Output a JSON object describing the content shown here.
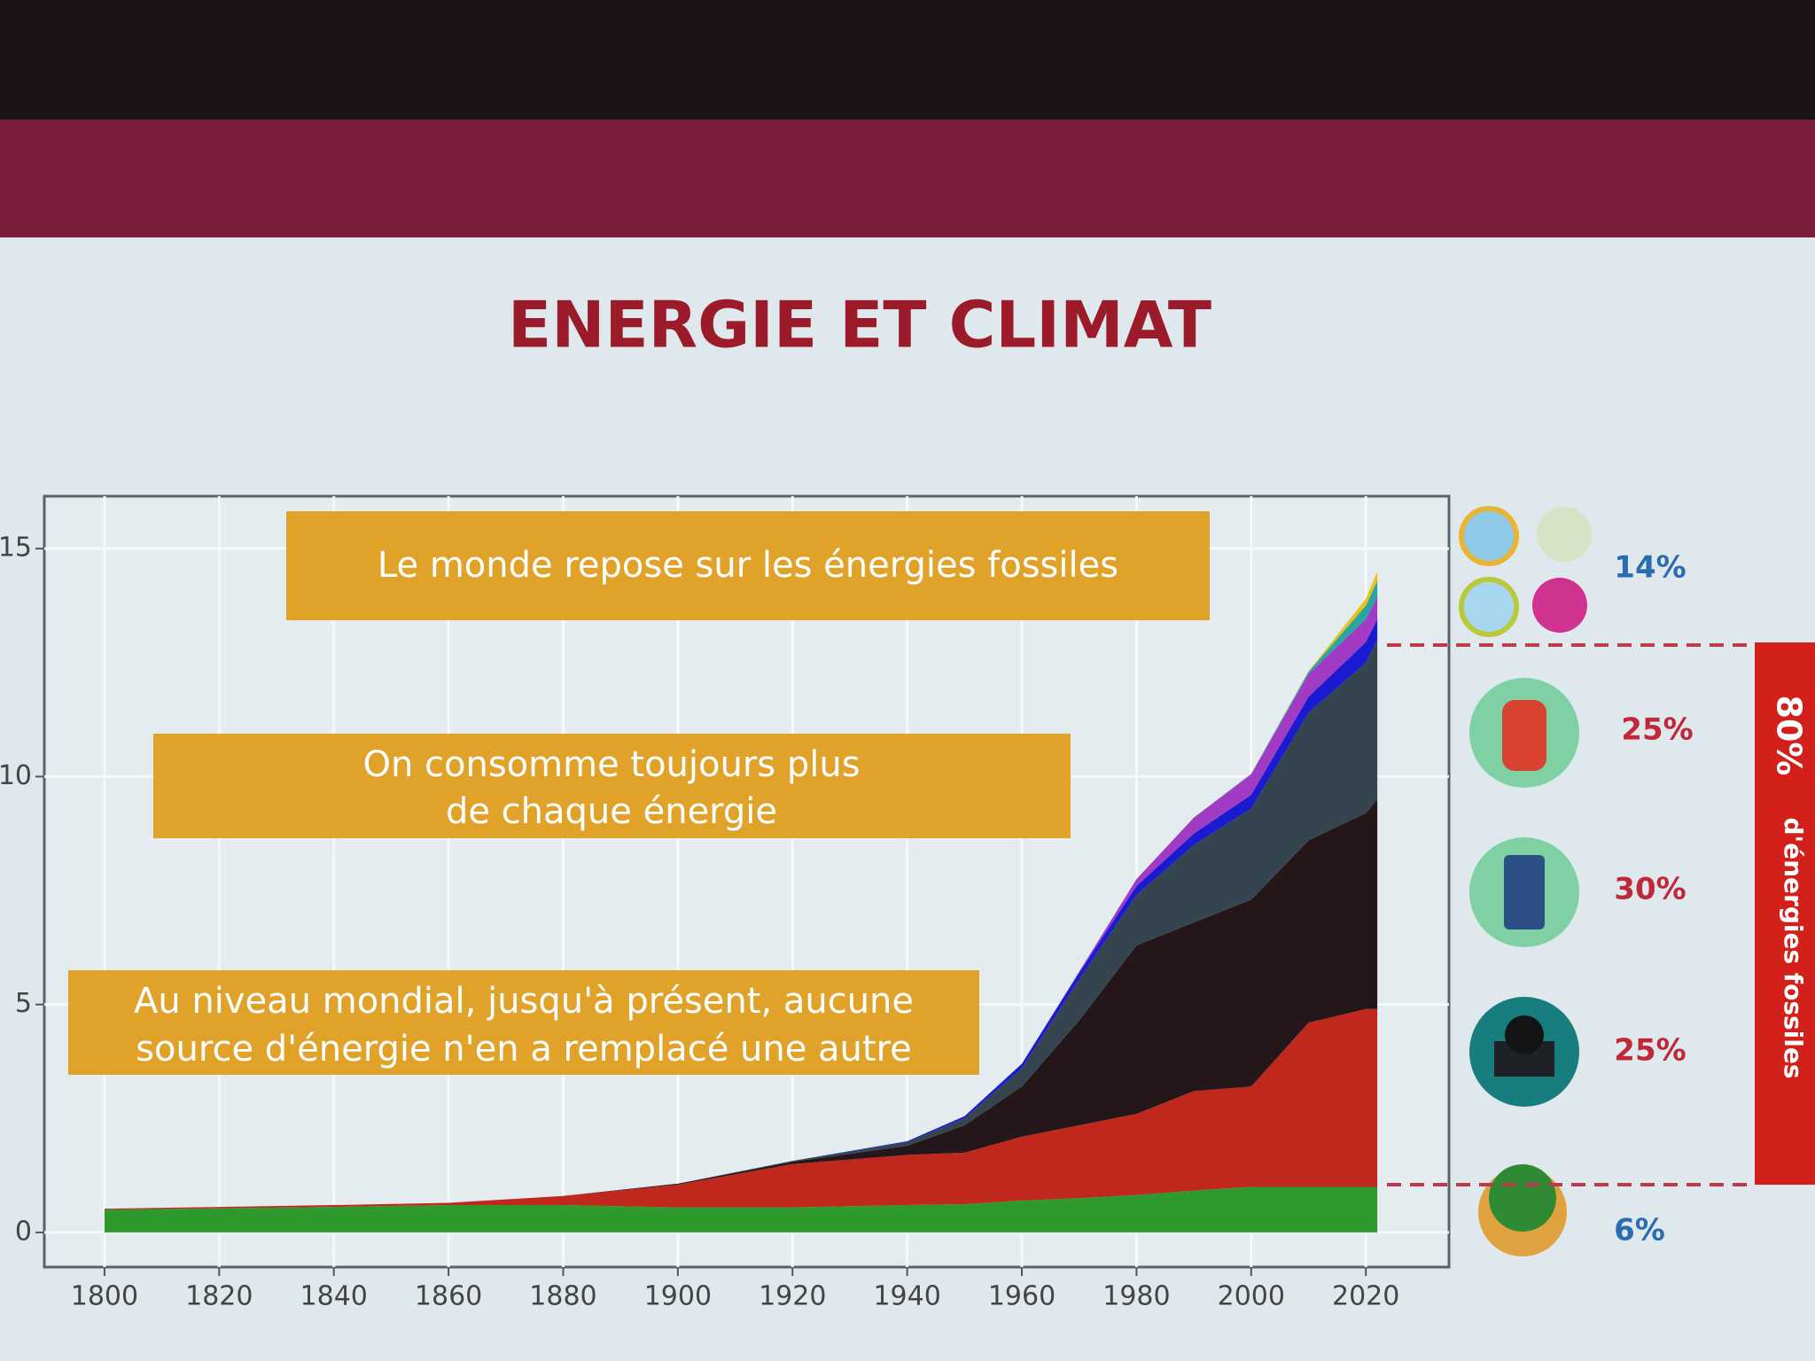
{
  "title": "ENERGIE ET CLIMAT",
  "annotations": [
    "Le monde repose sur les énergies fossiles",
    "On consomme toujours plus",
    "de chaque énergie",
    "Au niveau mondial, jusqu'à présent, aucune",
    "source d'énergie n'en a remplacé une autre"
  ],
  "shares": [
    "14%",
    "25%",
    "30%",
    "25%",
    "6%"
  ],
  "fossil_note_value": "80%",
  "fossil_note_text": "d'énergies fossiles",
  "chart_data": {
    "type": "stacked_area",
    "x": [
      1800,
      1820,
      1840,
      1860,
      1880,
      1900,
      1920,
      1940,
      1950,
      1960,
      1970,
      1980,
      1990,
      2000,
      2010,
      2020,
      2022
    ],
    "series": [
      {
        "color": "#2e9a2e",
        "values": [
          0.5,
          0.53,
          0.56,
          0.6,
          0.6,
          0.55,
          0.55,
          0.6,
          0.62,
          0.7,
          0.75,
          0.82,
          0.92,
          1.0,
          1.0,
          1.0,
          1.0
        ]
      },
      {
        "color": "#c0281e",
        "values": [
          0.02,
          0.03,
          0.04,
          0.05,
          0.2,
          0.5,
          0.95,
          1.1,
          1.13,
          1.4,
          1.6,
          1.78,
          2.18,
          2.2,
          3.6,
          3.9,
          3.9
        ]
      },
      {
        "color": "#241619",
        "values": [
          0,
          0,
          0,
          0,
          0,
          0.02,
          0.05,
          0.2,
          0.6,
          1.1,
          2.3,
          3.7,
          3.7,
          4.1,
          4.0,
          4.3,
          4.6
        ]
      },
      {
        "color": "#34454f",
        "values": [
          0,
          0,
          0,
          0,
          0,
          0,
          0.02,
          0.08,
          0.15,
          0.4,
          0.9,
          1.1,
          1.7,
          2.0,
          2.8,
          3.3,
          3.5
        ]
      },
      {
        "color": "#1a1ad0",
        "values": [
          0,
          0,
          0,
          0,
          0,
          0,
          0,
          0.02,
          0.05,
          0.1,
          0.15,
          0.2,
          0.25,
          0.3,
          0.35,
          0.45,
          0.45
        ]
      },
      {
        "color": "#a23bc4",
        "values": [
          0,
          0,
          0,
          0,
          0,
          0,
          0,
          0,
          0,
          0,
          0.02,
          0.15,
          0.35,
          0.45,
          0.5,
          0.5,
          0.5
        ]
      },
      {
        "color": "#2aa5a0",
        "values": [
          0,
          0,
          0,
          0,
          0,
          0,
          0,
          0,
          0,
          0,
          0,
          0,
          0,
          0.01,
          0.05,
          0.3,
          0.35
        ]
      },
      {
        "color": "#e8c21a",
        "values": [
          0,
          0,
          0,
          0,
          0,
          0,
          0,
          0,
          0,
          0,
          0,
          0,
          0,
          0,
          0.01,
          0.15,
          0.2
        ]
      }
    ],
    "xlim": [
      1789.5,
      2034.5
    ],
    "ylim": [
      -0.76,
      16.15
    ],
    "xticks": [
      1800,
      1820,
      1840,
      1860,
      1880,
      1900,
      1920,
      1940,
      1960,
      1980,
      2000,
      2020
    ],
    "yticks": [
      0,
      5,
      10,
      15
    ],
    "grid": true
  }
}
